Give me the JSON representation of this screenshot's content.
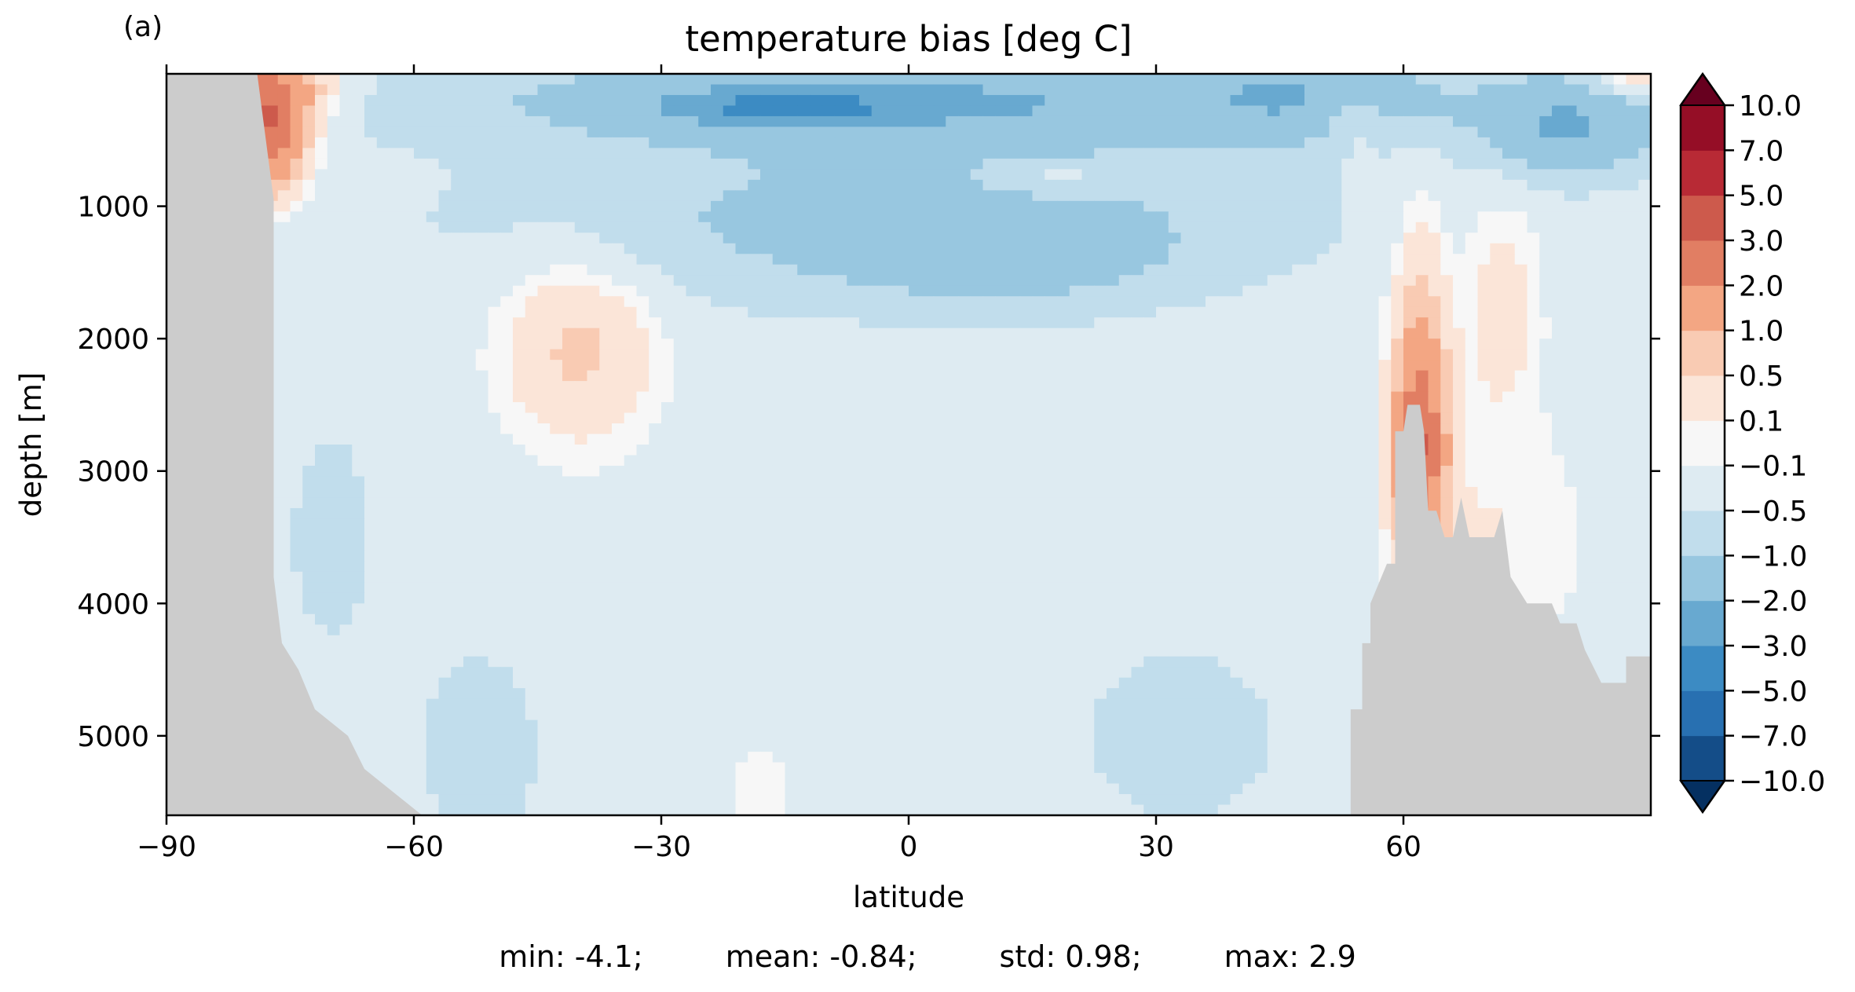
{
  "chart_data": {
    "type": "heatmap",
    "panel_label": "(a)",
    "title": "temperature bias [deg C]",
    "xlabel": "latitude",
    "ylabel": "depth [m]",
    "xlim": [
      -90,
      90
    ],
    "ylim": [
      5600,
      0
    ],
    "y_inverted": true,
    "x_ticks": [
      -90,
      -60,
      -30,
      0,
      30,
      60
    ],
    "x_tick_labels": [
      "−90",
      "−60",
      "−30",
      "0",
      "30",
      "60"
    ],
    "y_ticks": [
      1000,
      2000,
      3000,
      4000,
      5000
    ],
    "y_tick_labels": [
      "1000",
      "2000",
      "3000",
      "4000",
      "5000"
    ],
    "colorbar": {
      "extend": "both",
      "levels": [
        -10,
        -7,
        -5,
        -3,
        -2,
        -1,
        -0.5,
        -0.1,
        0.1,
        0.5,
        1,
        2,
        3,
        5,
        7,
        10
      ],
      "tick_labels": [
        "−10.0",
        "−7.0",
        "−5.0",
        "−3.0",
        "−2.0",
        "−1.0",
        "−0.5",
        "−0.1",
        "0.1",
        "0.5",
        "1.0",
        "2.0",
        "3.0",
        "5.0",
        "7.0",
        "10.0"
      ],
      "colors": [
        "#053061",
        "#144d88",
        "#2870b1",
        "#3c8bc3",
        "#68a9d0",
        "#98c7e0",
        "#c1ddec",
        "#deebf2",
        "#f7f7f7",
        "#fbe5d8",
        "#f9cbb3",
        "#f3a683",
        "#e17e63",
        "#cd5a4c",
        "#b82a35",
        "#950e26",
        "#67001f"
      ]
    },
    "land_color": "#cccccc",
    "bathymetry": {
      "south_margin": [
        [
          -79,
          0
        ],
        [
          -77,
          950
        ],
        [
          -77,
          3800
        ],
        [
          -76,
          4300
        ],
        [
          -74,
          4500
        ],
        [
          -72,
          4800
        ],
        [
          -70,
          4900
        ],
        [
          -68,
          5000
        ],
        [
          -66,
          5250
        ],
        [
          -64,
          5350
        ],
        [
          -61,
          5500
        ],
        [
          -59,
          5600
        ]
      ],
      "north_margin": [
        [
          53.6,
          5600
        ],
        [
          53.6,
          4800
        ],
        [
          55,
          4800
        ],
        [
          55,
          4300
        ],
        [
          56,
          4300
        ],
        [
          56,
          4000
        ],
        [
          58,
          3700
        ],
        [
          59,
          3700
        ],
        [
          59,
          2700
        ],
        [
          60,
          2700
        ],
        [
          60.5,
          2500
        ],
        [
          62,
          2500
        ],
        [
          62.5,
          2700
        ],
        [
          63,
          3300
        ],
        [
          64,
          3300
        ],
        [
          65,
          3500
        ],
        [
          66,
          3500
        ],
        [
          67,
          3200
        ],
        [
          68,
          3500
        ],
        [
          71,
          3500
        ],
        [
          72,
          3300
        ],
        [
          73,
          3800
        ],
        [
          75,
          4000
        ],
        [
          78,
          4000
        ],
        [
          79,
          4150
        ],
        [
          81,
          4150
        ],
        [
          82,
          4350
        ],
        [
          84,
          4600
        ],
        [
          87,
          4600
        ],
        [
          87,
          4400
        ],
        [
          90,
          4400
        ],
        [
          90,
          5600
        ]
      ]
    },
    "bias_field": {
      "background": -0.3,
      "blobs": [
        {
          "lat": -3,
          "depth": 1100,
          "sx": 32,
          "sy": 420,
          "amp": -0.9
        },
        {
          "lat": 5,
          "depth": 200,
          "sx": 38,
          "sy": 250,
          "amp": -1.7
        },
        {
          "lat": -15,
          "depth": 250,
          "sx": 10,
          "sy": 90,
          "amp": -1.8
        },
        {
          "lat": 12,
          "depth": 1350,
          "sx": 13,
          "sy": 260,
          "amp": -0.9
        },
        {
          "lat": 48,
          "depth": 150,
          "sx": 9,
          "sy": 250,
          "amp": -0.9
        },
        {
          "lat": 80,
          "depth": 400,
          "sx": 7,
          "sy": 250,
          "amp": -1.7
        },
        {
          "lat": -78,
          "depth": 350,
          "sx": 3.5,
          "sy": 350,
          "amp": 3.5
        },
        {
          "lat": -73,
          "depth": 100,
          "sx": 4,
          "sy": 150,
          "amp": 0.7
        },
        {
          "lat": -40,
          "depth": 2050,
          "sx": 7,
          "sy": 560,
          "amp": 0.9
        },
        {
          "lat": 62,
          "depth": 2850,
          "sx": 2.2,
          "sy": 520,
          "amp": 2.8
        },
        {
          "lat": 62,
          "depth": 1900,
          "sx": 2.5,
          "sy": 700,
          "amp": 0.9
        },
        {
          "lat": 72,
          "depth": 1700,
          "sx": 3.5,
          "sy": 600,
          "amp": 0.6
        },
        {
          "lat": 71,
          "depth": 3500,
          "sx": 9,
          "sy": 700,
          "amp": 0.4
        },
        {
          "lat": 88,
          "depth": 50,
          "sx": 4,
          "sy": 80,
          "amp": 1.0
        },
        {
          "lat": 54,
          "depth": 300,
          "sx": 3,
          "sy": 200,
          "amp": 0.8
        },
        {
          "lat": 18,
          "depth": 800,
          "sx": 6,
          "sy": 100,
          "amp": 0.6
        },
        {
          "lat": -18,
          "depth": 5400,
          "sx": 4,
          "sy": 300,
          "amp": 0.3
        },
        {
          "lat": 33,
          "depth": 5000,
          "sx": 8,
          "sy": 450,
          "amp": -0.5
        },
        {
          "lat": -52,
          "depth": 5100,
          "sx": 5,
          "sy": 500,
          "amp": -0.5
        },
        {
          "lat": -70,
          "depth": 3500,
          "sx": 5,
          "sy": 800,
          "amp": -0.3
        }
      ]
    },
    "stats": {
      "min": "min: -4.1;",
      "mean": "mean: -0.84;",
      "std": "std: 0.98;",
      "max": "max: 2.9"
    }
  }
}
